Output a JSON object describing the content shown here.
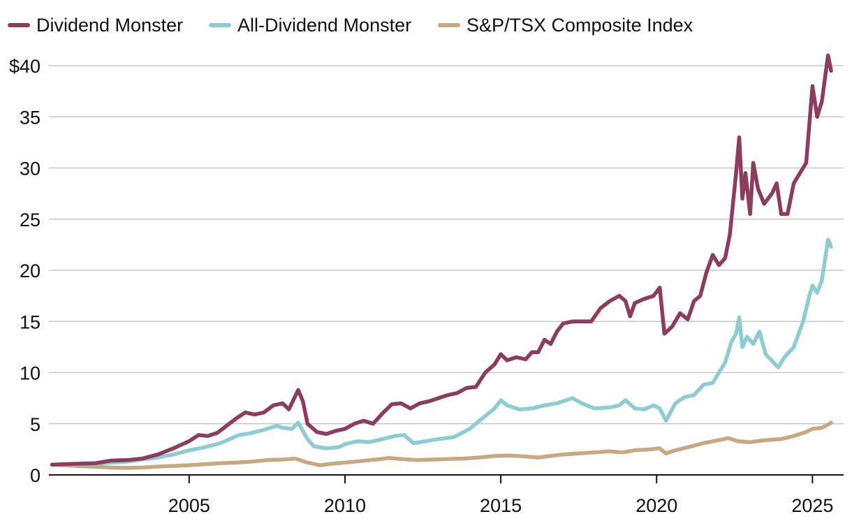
{
  "chart_data": {
    "type": "line",
    "title": "",
    "xlabel": "",
    "ylabel": "",
    "xlim": [
      2000.5,
      2026.0
    ],
    "ylim": [
      0,
      40
    ],
    "y_ticks": [
      {
        "value": 0,
        "label": "0"
      },
      {
        "value": 5,
        "label": "5"
      },
      {
        "value": 10,
        "label": "10"
      },
      {
        "value": 15,
        "label": "15"
      },
      {
        "value": 20,
        "label": "20"
      },
      {
        "value": 25,
        "label": "25"
      },
      {
        "value": 30,
        "label": "30"
      },
      {
        "value": 35,
        "label": "35"
      },
      {
        "value": 40,
        "label": "$40"
      }
    ],
    "x_ticks": [
      {
        "value": 2005,
        "label": "2005"
      },
      {
        "value": 2010,
        "label": "2010"
      },
      {
        "value": 2015,
        "label": "2015"
      },
      {
        "value": 2020,
        "label": "2020"
      },
      {
        "value": 2025,
        "label": "2025"
      }
    ],
    "grid": true,
    "legend_position": "top",
    "series": [
      {
        "name": "Dividend Monster",
        "color": "#8b3d5e",
        "points": [
          [
            2000.6,
            1.0
          ],
          [
            2001.0,
            1.05
          ],
          [
            2001.5,
            1.1
          ],
          [
            2002.0,
            1.15
          ],
          [
            2002.5,
            1.4
          ],
          [
            2003.0,
            1.45
          ],
          [
            2003.5,
            1.6
          ],
          [
            2004.0,
            2.0
          ],
          [
            2004.5,
            2.6
          ],
          [
            2005.0,
            3.3
          ],
          [
            2005.3,
            3.9
          ],
          [
            2005.6,
            3.8
          ],
          [
            2005.9,
            4.1
          ],
          [
            2006.2,
            4.8
          ],
          [
            2006.5,
            5.5
          ],
          [
            2006.8,
            6.1
          ],
          [
            2007.1,
            5.9
          ],
          [
            2007.4,
            6.1
          ],
          [
            2007.7,
            6.8
          ],
          [
            2008.0,
            7.0
          ],
          [
            2008.2,
            6.4
          ],
          [
            2008.5,
            8.3
          ],
          [
            2008.65,
            7.2
          ],
          [
            2008.8,
            5.0
          ],
          [
            2009.1,
            4.2
          ],
          [
            2009.4,
            4.0
          ],
          [
            2009.7,
            4.3
          ],
          [
            2010.0,
            4.5
          ],
          [
            2010.3,
            5.0
          ],
          [
            2010.6,
            5.3
          ],
          [
            2010.9,
            5.0
          ],
          [
            2011.2,
            6.0
          ],
          [
            2011.5,
            6.9
          ],
          [
            2011.8,
            7.0
          ],
          [
            2012.1,
            6.5
          ],
          [
            2012.4,
            7.0
          ],
          [
            2012.7,
            7.2
          ],
          [
            2013.0,
            7.5
          ],
          [
            2013.3,
            7.8
          ],
          [
            2013.6,
            8.0
          ],
          [
            2013.9,
            8.5
          ],
          [
            2014.2,
            8.6
          ],
          [
            2014.5,
            10.0
          ],
          [
            2014.8,
            10.8
          ],
          [
            2015.0,
            11.8
          ],
          [
            2015.2,
            11.2
          ],
          [
            2015.5,
            11.5
          ],
          [
            2015.8,
            11.3
          ],
          [
            2016.0,
            12.0
          ],
          [
            2016.2,
            12.0
          ],
          [
            2016.4,
            13.2
          ],
          [
            2016.6,
            12.8
          ],
          [
            2016.8,
            14.0
          ],
          [
            2017.0,
            14.8
          ],
          [
            2017.3,
            15.0
          ],
          [
            2017.6,
            15.0
          ],
          [
            2017.9,
            15.0
          ],
          [
            2018.2,
            16.3
          ],
          [
            2018.5,
            17.0
          ],
          [
            2018.8,
            17.5
          ],
          [
            2019.0,
            17.0
          ],
          [
            2019.15,
            15.5
          ],
          [
            2019.3,
            16.8
          ],
          [
            2019.6,
            17.2
          ],
          [
            2019.9,
            17.5
          ],
          [
            2020.1,
            18.3
          ],
          [
            2020.25,
            13.8
          ],
          [
            2020.5,
            14.5
          ],
          [
            2020.75,
            15.8
          ],
          [
            2021.0,
            15.2
          ],
          [
            2021.2,
            17.0
          ],
          [
            2021.4,
            17.5
          ],
          [
            2021.6,
            19.8
          ],
          [
            2021.8,
            21.5
          ],
          [
            2022.0,
            20.5
          ],
          [
            2022.2,
            21.2
          ],
          [
            2022.35,
            23.5
          ],
          [
            2022.55,
            29.5
          ],
          [
            2022.65,
            33.0
          ],
          [
            2022.75,
            27.0
          ],
          [
            2022.85,
            29.5
          ],
          [
            2023.0,
            25.5
          ],
          [
            2023.1,
            30.5
          ],
          [
            2023.25,
            28.0
          ],
          [
            2023.45,
            26.5
          ],
          [
            2023.7,
            27.5
          ],
          [
            2023.85,
            28.5
          ],
          [
            2024.0,
            25.5
          ],
          [
            2024.2,
            25.5
          ],
          [
            2024.4,
            28.5
          ],
          [
            2024.6,
            29.5
          ],
          [
            2024.8,
            30.5
          ],
          [
            2025.0,
            38.0
          ],
          [
            2025.15,
            35.0
          ],
          [
            2025.3,
            36.5
          ],
          [
            2025.5,
            41.0
          ],
          [
            2025.6,
            39.5
          ]
        ]
      },
      {
        "name": "All-Dividend Monster",
        "color": "#8fcbd2",
        "points": [
          [
            2000.6,
            1.0
          ],
          [
            2001.0,
            1.0
          ],
          [
            2001.5,
            1.05
          ],
          [
            2002.0,
            1.1
          ],
          [
            2002.5,
            1.2
          ],
          [
            2003.0,
            1.3
          ],
          [
            2003.5,
            1.5
          ],
          [
            2004.0,
            1.7
          ],
          [
            2004.5,
            2.0
          ],
          [
            2005.0,
            2.4
          ],
          [
            2005.5,
            2.7
          ],
          [
            2006.0,
            3.1
          ],
          [
            2006.3,
            3.5
          ],
          [
            2006.6,
            3.9
          ],
          [
            2007.0,
            4.1
          ],
          [
            2007.4,
            4.4
          ],
          [
            2007.8,
            4.8
          ],
          [
            2008.0,
            4.6
          ],
          [
            2008.3,
            4.5
          ],
          [
            2008.5,
            5.1
          ],
          [
            2008.8,
            3.5
          ],
          [
            2009.0,
            2.8
          ],
          [
            2009.4,
            2.6
          ],
          [
            2009.8,
            2.7
          ],
          [
            2010.0,
            3.0
          ],
          [
            2010.4,
            3.3
          ],
          [
            2010.8,
            3.2
          ],
          [
            2011.2,
            3.5
          ],
          [
            2011.6,
            3.8
          ],
          [
            2011.9,
            3.9
          ],
          [
            2012.2,
            3.1
          ],
          [
            2012.6,
            3.3
          ],
          [
            2013.0,
            3.5
          ],
          [
            2013.5,
            3.7
          ],
          [
            2014.0,
            4.5
          ],
          [
            2014.4,
            5.5
          ],
          [
            2014.8,
            6.5
          ],
          [
            2015.0,
            7.3
          ],
          [
            2015.2,
            6.8
          ],
          [
            2015.6,
            6.4
          ],
          [
            2016.0,
            6.5
          ],
          [
            2016.4,
            6.8
          ],
          [
            2016.8,
            7.0
          ],
          [
            2017.0,
            7.2
          ],
          [
            2017.3,
            7.5
          ],
          [
            2017.6,
            7.0
          ],
          [
            2018.0,
            6.5
          ],
          [
            2018.5,
            6.6
          ],
          [
            2018.8,
            6.8
          ],
          [
            2019.0,
            7.3
          ],
          [
            2019.3,
            6.5
          ],
          [
            2019.6,
            6.4
          ],
          [
            2019.9,
            6.8
          ],
          [
            2020.1,
            6.5
          ],
          [
            2020.3,
            5.3
          ],
          [
            2020.6,
            7.0
          ],
          [
            2020.9,
            7.6
          ],
          [
            2021.2,
            7.8
          ],
          [
            2021.5,
            8.8
          ],
          [
            2021.8,
            9.0
          ],
          [
            2022.0,
            10.0
          ],
          [
            2022.2,
            11.0
          ],
          [
            2022.4,
            13.0
          ],
          [
            2022.55,
            13.8
          ],
          [
            2022.65,
            15.4
          ],
          [
            2022.75,
            12.5
          ],
          [
            2022.9,
            13.5
          ],
          [
            2023.1,
            12.8
          ],
          [
            2023.3,
            14.0
          ],
          [
            2023.5,
            11.8
          ],
          [
            2023.75,
            11.0
          ],
          [
            2023.9,
            10.5
          ],
          [
            2024.1,
            11.5
          ],
          [
            2024.4,
            12.5
          ],
          [
            2024.7,
            15.0
          ],
          [
            2024.9,
            17.5
          ],
          [
            2025.0,
            18.5
          ],
          [
            2025.15,
            17.8
          ],
          [
            2025.3,
            19.0
          ],
          [
            2025.5,
            23.0
          ],
          [
            2025.6,
            22.3
          ]
        ]
      },
      {
        "name": "S&P/TSX Composite Index",
        "color": "#c6a882",
        "points": [
          [
            2000.6,
            1.0
          ],
          [
            2001.0,
            0.95
          ],
          [
            2001.5,
            0.85
          ],
          [
            2002.0,
            0.8
          ],
          [
            2002.5,
            0.72
          ],
          [
            2003.0,
            0.68
          ],
          [
            2003.5,
            0.72
          ],
          [
            2004.0,
            0.82
          ],
          [
            2004.5,
            0.88
          ],
          [
            2005.0,
            0.95
          ],
          [
            2005.5,
            1.05
          ],
          [
            2006.0,
            1.15
          ],
          [
            2006.5,
            1.2
          ],
          [
            2007.0,
            1.3
          ],
          [
            2007.5,
            1.45
          ],
          [
            2008.0,
            1.5
          ],
          [
            2008.4,
            1.6
          ],
          [
            2008.8,
            1.2
          ],
          [
            2009.2,
            0.95
          ],
          [
            2009.6,
            1.1
          ],
          [
            2010.0,
            1.2
          ],
          [
            2010.5,
            1.35
          ],
          [
            2011.0,
            1.5
          ],
          [
            2011.4,
            1.65
          ],
          [
            2011.8,
            1.55
          ],
          [
            2012.3,
            1.45
          ],
          [
            2012.8,
            1.5
          ],
          [
            2013.3,
            1.55
          ],
          [
            2013.8,
            1.6
          ],
          [
            2014.3,
            1.7
          ],
          [
            2014.8,
            1.85
          ],
          [
            2015.3,
            1.9
          ],
          [
            2015.8,
            1.8
          ],
          [
            2016.2,
            1.7
          ],
          [
            2016.6,
            1.85
          ],
          [
            2017.0,
            2.0
          ],
          [
            2017.5,
            2.1
          ],
          [
            2018.0,
            2.2
          ],
          [
            2018.5,
            2.3
          ],
          [
            2018.9,
            2.2
          ],
          [
            2019.3,
            2.4
          ],
          [
            2019.8,
            2.5
          ],
          [
            2020.1,
            2.6
          ],
          [
            2020.3,
            2.1
          ],
          [
            2020.6,
            2.4
          ],
          [
            2021.0,
            2.7
          ],
          [
            2021.5,
            3.1
          ],
          [
            2022.0,
            3.4
          ],
          [
            2022.3,
            3.6
          ],
          [
            2022.6,
            3.3
          ],
          [
            2023.0,
            3.2
          ],
          [
            2023.5,
            3.4
          ],
          [
            2024.0,
            3.5
          ],
          [
            2024.4,
            3.8
          ],
          [
            2024.8,
            4.2
          ],
          [
            2025.0,
            4.5
          ],
          [
            2025.3,
            4.6
          ],
          [
            2025.6,
            5.1
          ]
        ]
      }
    ]
  }
}
